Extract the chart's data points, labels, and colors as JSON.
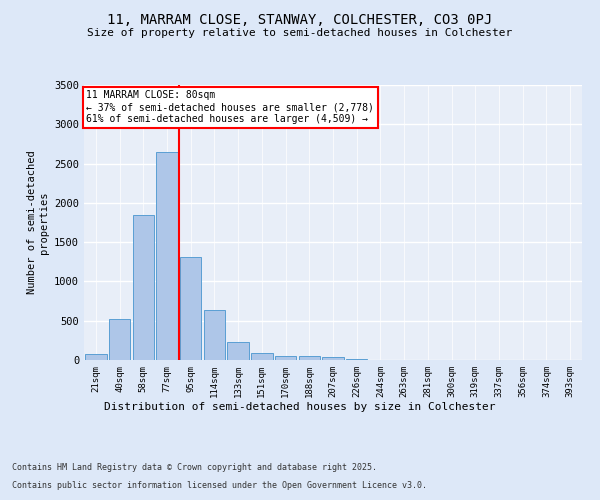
{
  "title1": "11, MARRAM CLOSE, STANWAY, COLCHESTER, CO3 0PJ",
  "title2": "Size of property relative to semi-detached houses in Colchester",
  "xlabel": "Distribution of semi-detached houses by size in Colchester",
  "ylabel": "Number of semi-detached\nproperties",
  "categories": [
    "21sqm",
    "40sqm",
    "58sqm",
    "77sqm",
    "95sqm",
    "114sqm",
    "133sqm",
    "151sqm",
    "170sqm",
    "188sqm",
    "207sqm",
    "226sqm",
    "244sqm",
    "263sqm",
    "281sqm",
    "300sqm",
    "319sqm",
    "337sqm",
    "356sqm",
    "374sqm",
    "393sqm"
  ],
  "values": [
    75,
    525,
    1850,
    2650,
    1310,
    640,
    230,
    90,
    55,
    45,
    35,
    10,
    5,
    5,
    5,
    5,
    3,
    2,
    1,
    1,
    0
  ],
  "bar_color": "#aec6e8",
  "bar_edge_color": "#5a9fd4",
  "red_line_x": 3.5,
  "annotation_label": "11 MARRAM CLOSE: 80sqm",
  "annotation_left": "← 37% of semi-detached houses are smaller (2,778)",
  "annotation_right": "61% of semi-detached houses are larger (4,509) →",
  "ylim": [
    0,
    3500
  ],
  "yticks": [
    0,
    500,
    1000,
    1500,
    2000,
    2500,
    3000,
    3500
  ],
  "footnote1": "Contains HM Land Registry data © Crown copyright and database right 2025.",
  "footnote2": "Contains public sector information licensed under the Open Government Licence v3.0.",
  "bg_color": "#dde8f8",
  "plot_bg_color": "#e8eef8"
}
